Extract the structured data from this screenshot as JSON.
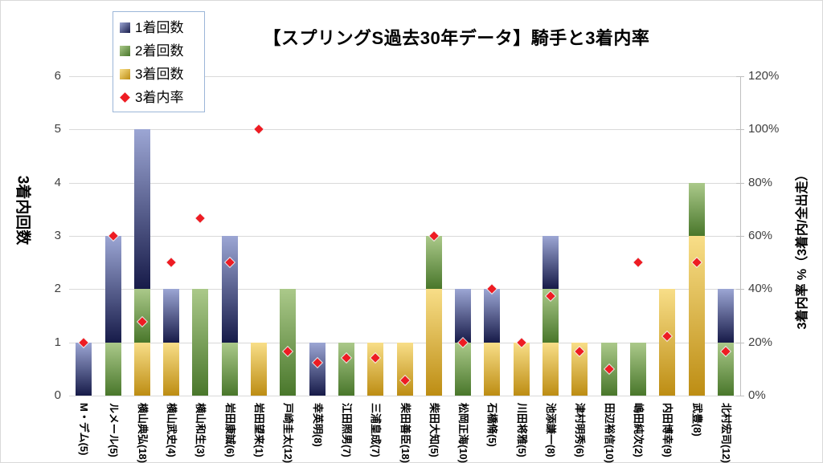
{
  "chart_data": {
    "type": "bar",
    "subtype": "stacked-bars-with-scatter-overlay",
    "title": "【スプリングS過去30年データ】騎手と3着内率",
    "categories": [
      "M・デム(5)",
      "ルメール(5)",
      "横山典弘(18)",
      "横山武史(4)",
      "横山和生(3)",
      "岩田康誠(6)",
      "岩田望来(1)",
      "戸崎圭太(12)",
      "幸英明(8)",
      "江田照男(7)",
      "三浦皇成(7)",
      "柴田善臣(18)",
      "柴田大知(5)",
      "松岡正海(10)",
      "石橋脩(5)",
      "川田将雅(5)",
      "池添謙一(8)",
      "津村明秀(6)",
      "田辺裕信(10)",
      "嶋田純次(2)",
      "内田博幸(9)",
      "武豊(8)",
      "北村宏司(12)"
    ],
    "series": [
      {
        "name": "1着回数",
        "type": "bar",
        "axis": "left",
        "values": [
          1,
          2,
          3,
          1,
          0,
          2,
          0,
          0,
          1,
          0,
          0,
          0,
          0,
          1,
          1,
          0,
          1,
          0,
          0,
          0,
          0,
          0,
          1
        ]
      },
      {
        "name": "2着回数",
        "type": "bar",
        "axis": "left",
        "values": [
          0,
          1,
          1,
          0,
          2,
          1,
          0,
          2,
          0,
          1,
          0,
          0,
          1,
          1,
          0,
          0,
          1,
          0,
          1,
          1,
          0,
          1,
          1
        ]
      },
      {
        "name": "3着回数",
        "type": "bar",
        "axis": "left",
        "values": [
          0,
          0,
          1,
          1,
          0,
          0,
          1,
          0,
          0,
          0,
          1,
          1,
          2,
          0,
          1,
          1,
          1,
          1,
          0,
          0,
          2,
          3,
          0
        ]
      },
      {
        "name": "3着内率",
        "type": "scatter",
        "axis": "right",
        "values_percent": [
          20,
          60,
          27.8,
          50,
          66.7,
          50,
          100,
          16.7,
          12.5,
          14.3,
          14.3,
          5.6,
          60,
          20,
          40,
          20,
          37.5,
          16.7,
          10,
          50,
          22.2,
          50,
          16.7
        ]
      }
    ],
    "stack_order_bottom_to_top": [
      "3着回数",
      "2着回数",
      "1着回数"
    ],
    "left_axis": {
      "title": "3着内回数",
      "min": 0,
      "max": 6,
      "ticks": [
        0,
        1,
        2,
        3,
        4,
        5,
        6
      ]
    },
    "right_axis": {
      "title": "3着内率 %（3着内/全出走）",
      "min": 0,
      "max": 120,
      "tick_labels": [
        "0%",
        "20%",
        "40%",
        "60%",
        "80%",
        "100%",
        "120%"
      ]
    },
    "grid": true,
    "legend_position": "top-left"
  },
  "colors": {
    "bar_1st_top": "#9ca6d4",
    "bar_1st_bottom": "#171b49",
    "bar_2nd_top": "#abc98a",
    "bar_2nd_bottom": "#49772b",
    "bar_3rd_top": "#f8de88",
    "bar_3rd_bottom": "#bd8d13",
    "rate_marker": "#ee1c23",
    "gridline": "#d9d9d9",
    "axis_line": "#bfbfbf",
    "legend_border": "#9cb6d8"
  }
}
